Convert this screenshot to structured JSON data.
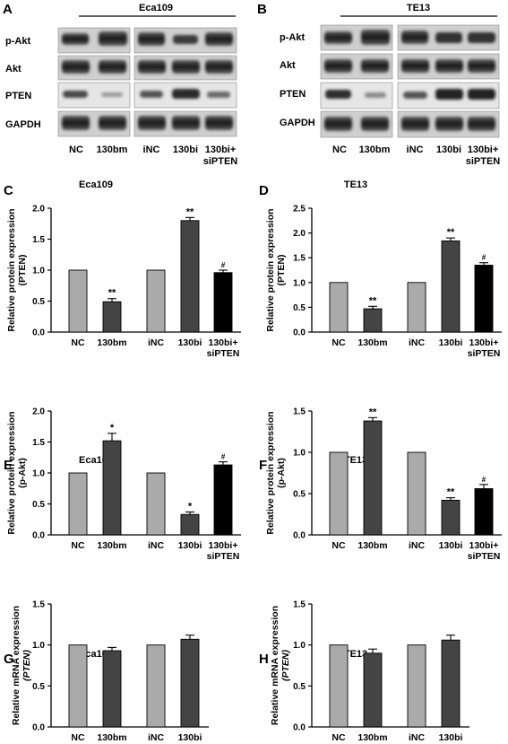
{
  "blots": [
    {
      "letter": "A",
      "cell_line": "Eca109",
      "rows": [
        "p-Akt",
        "Akt",
        "PTEN",
        "GAPDH"
      ],
      "lanes": [
        "NC",
        "130bm",
        "iNC",
        "130bi",
        "130bi+",
        "siPTEN"
      ]
    },
    {
      "letter": "B",
      "cell_line": "TE13",
      "rows": [
        "p-Akt",
        "Akt",
        "PTEN",
        "GAPDH"
      ],
      "lanes": [
        "NC",
        "130bm",
        "iNC",
        "130bi",
        "130bi+",
        "siPTEN"
      ]
    }
  ],
  "chart_data": [
    {
      "letter": "C",
      "type": "bar",
      "title": "Eca109",
      "ylabel": [
        "Relative protein expression",
        "(PTEN)"
      ],
      "ylim": [
        0,
        2.0
      ],
      "yticks": [
        "0.0",
        "0.5",
        "1.0",
        "1.5",
        "2.0"
      ],
      "categories": [
        "NC",
        "130bm",
        "iNC",
        "130bi",
        "130bi+\nsiPTEN"
      ],
      "values": [
        1.0,
        0.49,
        1.0,
        1.8,
        0.96
      ],
      "errors": [
        0,
        0.05,
        0,
        0.05,
        0.04
      ],
      "markers": [
        "",
        "**",
        "",
        "**",
        "#"
      ],
      "colors": [
        "#aaaaaa",
        "#444444",
        "#aaaaaa",
        "#444444",
        "#000000"
      ]
    },
    {
      "letter": "D",
      "type": "bar",
      "title": "TE13",
      "ylabel": [
        "Relative protein expression",
        "(PTEN)"
      ],
      "ylim": [
        0,
        2.5
      ],
      "yticks": [
        "0.0",
        "0.5",
        "1.0",
        "1.5",
        "2.0",
        "2.5"
      ],
      "categories": [
        "NC",
        "130bm",
        "iNC",
        "130bi",
        "130bi+\nsiPTEN"
      ],
      "values": [
        1.0,
        0.47,
        1.0,
        1.84,
        1.35
      ],
      "errors": [
        0,
        0.05,
        0,
        0.06,
        0.05
      ],
      "markers": [
        "",
        "**",
        "",
        "**",
        "#"
      ],
      "colors": [
        "#aaaaaa",
        "#444444",
        "#aaaaaa",
        "#444444",
        "#000000"
      ]
    },
    {
      "letter": "E",
      "type": "bar",
      "title": "Eca109",
      "ylabel": [
        "Relative protein expression",
        "(p-Akt)"
      ],
      "ylim": [
        0,
        2.0
      ],
      "yticks": [
        "0.0",
        "0.5",
        "1.0",
        "1.5",
        "2.0"
      ],
      "categories": [
        "NC",
        "130bm",
        "iNC",
        "130bi",
        "130bi+\nsiPTEN"
      ],
      "values": [
        1.0,
        1.52,
        1.0,
        0.33,
        1.13
      ],
      "errors": [
        0,
        0.12,
        0,
        0.04,
        0.05
      ],
      "markers": [
        "",
        "*",
        "",
        "*",
        "#"
      ],
      "colors": [
        "#aaaaaa",
        "#444444",
        "#aaaaaa",
        "#444444",
        "#000000"
      ]
    },
    {
      "letter": "F",
      "type": "bar",
      "title": "TE13",
      "ylabel": [
        "Relative protein expression",
        "(p-Akt)"
      ],
      "ylim": [
        0,
        1.5
      ],
      "yticks": [
        "0.0",
        "0.5",
        "1.0",
        "1.5"
      ],
      "categories": [
        "NC",
        "130bm",
        "iNC",
        "130bi",
        "130bi+\nsiPTEN"
      ],
      "values": [
        1.0,
        1.38,
        1.0,
        0.42,
        0.56
      ],
      "errors": [
        0,
        0.04,
        0,
        0.03,
        0.05
      ],
      "markers": [
        "",
        "**",
        "",
        "**",
        "#"
      ],
      "colors": [
        "#aaaaaa",
        "#444444",
        "#aaaaaa",
        "#444444",
        "#000000"
      ]
    },
    {
      "letter": "G",
      "type": "bar",
      "title": "Eca109",
      "ylabel": [
        "Relative mRNA expression",
        "(PTEN)"
      ],
      "ylim": [
        0,
        1.5
      ],
      "yticks": [
        "0.0",
        "0.5",
        "1.0",
        "1.5"
      ],
      "categories": [
        "NC",
        "130bm",
        "iNC",
        "130bi"
      ],
      "values": [
        1.0,
        0.93,
        1.0,
        1.07
      ],
      "errors": [
        0,
        0.04,
        0,
        0.05
      ],
      "markers": [
        "",
        "",
        "",
        ""
      ],
      "colors": [
        "#aaaaaa",
        "#444444",
        "#aaaaaa",
        "#444444"
      ]
    },
    {
      "letter": "H",
      "type": "bar",
      "title": "TE13",
      "ylabel": [
        "Relative mRNA expression",
        "(PTEN)"
      ],
      "ylim": [
        0,
        1.5
      ],
      "yticks": [
        "0.0",
        "0.5",
        "1.0",
        "1.5"
      ],
      "categories": [
        "NC",
        "130bm",
        "iNC",
        "130bi"
      ],
      "values": [
        1.0,
        0.9,
        1.0,
        1.06
      ],
      "errors": [
        0,
        0.05,
        0,
        0.06
      ],
      "markers": [
        "",
        "",
        "",
        ""
      ],
      "colors": [
        "#aaaaaa",
        "#444444",
        "#aaaaaa",
        "#444444"
      ]
    }
  ]
}
